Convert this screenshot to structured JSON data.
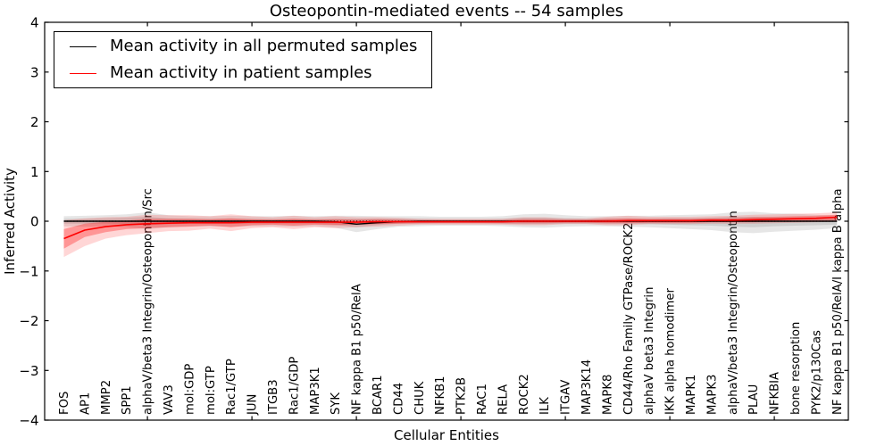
{
  "figure": {
    "title": "Osteopontin-mediated events -- 54 samples",
    "xlabel": "Cellular Entities",
    "ylabel": "Inferred Activity"
  },
  "legend": {
    "items": [
      {
        "label": "Mean activity in all permuted samples",
        "color": "#000000"
      },
      {
        "label": "Mean activity in patient samples",
        "color": "#ff0000"
      }
    ]
  },
  "chart_data": {
    "type": "line",
    "title": "Osteopontin-mediated events -- 54 samples",
    "xlabel": "Cellular Entities",
    "ylabel": "Inferred Activity",
    "ylim": [
      -4,
      4
    ],
    "yticks": [
      -4,
      -3,
      -2,
      -1,
      0,
      1,
      2,
      3,
      4
    ],
    "ytick_labels": [
      "−4",
      "−3",
      "−2",
      "−1",
      "0",
      "1",
      "2",
      "3",
      "4"
    ],
    "xtick_entity_numbers": [
      5,
      10,
      15,
      20,
      25,
      30,
      35
    ],
    "grid": false,
    "zero_line": true,
    "legend_position": "upper left",
    "categories": [
      "FOS",
      "AP1",
      "MMP2",
      "SPP1",
      "alphaV/beta3 Integrin/Osteopontin/Src",
      "VAV3",
      "mol:GDP",
      "mol:GTP",
      "Rac1/GTP",
      "JUN",
      "ITGB3",
      "Rac1/GDP",
      "MAP3K1",
      "SYK",
      "NF kappa B1 p50/RelA",
      "BCAR1",
      "CD44",
      "CHUK",
      "NFKB1",
      "PTK2B",
      "RAC1",
      "RELA",
      "ROCK2",
      "ILK",
      "ITGAV",
      "MAP3K14",
      "MAPK8",
      "CD44/Rho Family GTPase/ROCK2",
      "alphaV beta3 Integrin",
      "IKK alpha homodimer",
      "MAPK1",
      "MAPK3",
      "alphaV/beta3 Integrin/Osteopontin",
      "PLAU",
      "NFKBIA",
      "bone resorption",
      "PYK2/p130Cas",
      "NF kappa B1 p50/RelA/I kappa B alpha"
    ],
    "series": [
      {
        "name": "Mean activity in all permuted samples",
        "color": "#000000",
        "band_color": "#808080",
        "values": [
          0,
          0,
          0,
          0,
          0,
          0,
          0,
          0,
          0,
          0,
          0,
          0,
          0,
          -0.01,
          -0.06,
          -0.03,
          -0.01,
          0,
          0,
          0,
          0,
          0,
          0,
          0,
          0,
          0,
          0,
          0,
          0,
          0,
          0,
          0,
          0,
          0,
          0,
          0,
          0,
          0
        ],
        "band_inner": {
          "lo": [
            -0.05,
            -0.05,
            -0.05,
            -0.06,
            -0.08,
            -0.06,
            -0.05,
            -0.05,
            -0.05,
            -0.05,
            -0.05,
            -0.05,
            -0.05,
            -0.07,
            -0.12,
            -0.08,
            -0.05,
            -0.05,
            -0.04,
            -0.04,
            -0.04,
            -0.05,
            -0.06,
            -0.06,
            -0.05,
            -0.05,
            -0.05,
            -0.05,
            -0.06,
            -0.07,
            -0.08,
            -0.09,
            -0.11,
            -0.12,
            -0.1,
            -0.09,
            -0.08,
            -0.07
          ],
          "hi": [
            0.05,
            0.05,
            0.06,
            0.07,
            0.09,
            0.06,
            0.05,
            0.05,
            0.05,
            0.05,
            0.05,
            0.05,
            0.05,
            0.05,
            0.05,
            0.05,
            0.05,
            0.05,
            0.04,
            0.04,
            0.04,
            0.05,
            0.07,
            0.07,
            0.06,
            0.05,
            0.05,
            0.05,
            0.05,
            0.06,
            0.06,
            0.07,
            0.09,
            0.09,
            0.08,
            0.07,
            0.06,
            0.05
          ]
        },
        "band_outer": {
          "lo": [
            -0.1,
            -0.11,
            -0.1,
            -0.12,
            -0.16,
            -0.12,
            -0.1,
            -0.1,
            -0.11,
            -0.1,
            -0.1,
            -0.11,
            -0.1,
            -0.13,
            -0.22,
            -0.16,
            -0.11,
            -0.1,
            -0.09,
            -0.09,
            -0.09,
            -0.1,
            -0.12,
            -0.13,
            -0.11,
            -0.1,
            -0.1,
            -0.11,
            -0.12,
            -0.14,
            -0.16,
            -0.18,
            -0.22,
            -0.24,
            -0.21,
            -0.19,
            -0.17,
            -0.14
          ],
          "hi": [
            0.1,
            0.11,
            0.12,
            0.14,
            0.18,
            0.12,
            0.1,
            0.1,
            0.11,
            0.1,
            0.1,
            0.11,
            0.1,
            0.11,
            0.11,
            0.1,
            0.1,
            0.1,
            0.09,
            0.09,
            0.09,
            0.1,
            0.14,
            0.15,
            0.12,
            0.1,
            0.1,
            0.11,
            0.11,
            0.12,
            0.13,
            0.14,
            0.18,
            0.19,
            0.16,
            0.15,
            0.13,
            0.11
          ]
        }
      },
      {
        "name": "Mean activity in patient samples",
        "color": "#ff0000",
        "band_color": "#ff0000",
        "values": [
          -0.35,
          -0.18,
          -0.11,
          -0.07,
          -0.05,
          -0.04,
          -0.03,
          -0.03,
          -0.03,
          -0.02,
          -0.02,
          -0.02,
          -0.02,
          -0.02,
          -0.02,
          -0.01,
          -0.01,
          -0.01,
          -0.01,
          -0.01,
          -0.01,
          -0.01,
          0,
          0,
          0,
          0,
          0,
          0.01,
          0.01,
          0.01,
          0.01,
          0.02,
          0.02,
          0.03,
          0.04,
          0.05,
          0.06,
          0.08
        ],
        "band_inner": {
          "lo": [
            -0.55,
            -0.32,
            -0.22,
            -0.16,
            -0.14,
            -0.12,
            -0.11,
            -0.09,
            -0.12,
            -0.08,
            -0.07,
            -0.09,
            -0.07,
            -0.08,
            -0.07,
            -0.06,
            -0.05,
            -0.04,
            -0.04,
            -0.04,
            -0.04,
            -0.04,
            -0.04,
            -0.04,
            -0.03,
            -0.03,
            -0.04,
            -0.04,
            -0.03,
            -0.03,
            -0.03,
            -0.02,
            -0.02,
            -0.02,
            -0.01,
            0.0,
            0.01,
            0.02
          ],
          "hi": [
            -0.16,
            -0.05,
            -0.01,
            0.01,
            0.05,
            0.05,
            0.05,
            0.04,
            0.06,
            0.04,
            0.03,
            0.05,
            0.03,
            0.04,
            0.03,
            0.04,
            0.03,
            0.02,
            0.02,
            0.02,
            0.02,
            0.02,
            0.04,
            0.04,
            0.03,
            0.03,
            0.05,
            0.06,
            0.05,
            0.05,
            0.05,
            0.06,
            0.06,
            0.08,
            0.09,
            0.1,
            0.11,
            0.13
          ]
        },
        "band_outer": {
          "lo": [
            -0.72,
            -0.5,
            -0.35,
            -0.28,
            -0.24,
            -0.2,
            -0.19,
            -0.15,
            -0.2,
            -0.14,
            -0.12,
            -0.16,
            -0.12,
            -0.14,
            -0.12,
            -0.11,
            -0.09,
            -0.07,
            -0.07,
            -0.07,
            -0.07,
            -0.07,
            -0.08,
            -0.08,
            -0.06,
            -0.06,
            -0.08,
            -0.08,
            -0.06,
            -0.06,
            -0.06,
            -0.05,
            -0.05,
            -0.05,
            -0.04,
            -0.03,
            -0.02,
            -0.01
          ],
          "hi": [
            0.02,
            0.06,
            0.08,
            0.09,
            0.13,
            0.12,
            0.12,
            0.1,
            0.14,
            0.1,
            0.08,
            0.11,
            0.08,
            0.1,
            0.08,
            0.08,
            0.07,
            0.05,
            0.05,
            0.05,
            0.05,
            0.05,
            0.08,
            0.08,
            0.06,
            0.06,
            0.09,
            0.11,
            0.09,
            0.09,
            0.09,
            0.1,
            0.11,
            0.13,
            0.14,
            0.15,
            0.16,
            0.18
          ]
        }
      }
    ]
  }
}
